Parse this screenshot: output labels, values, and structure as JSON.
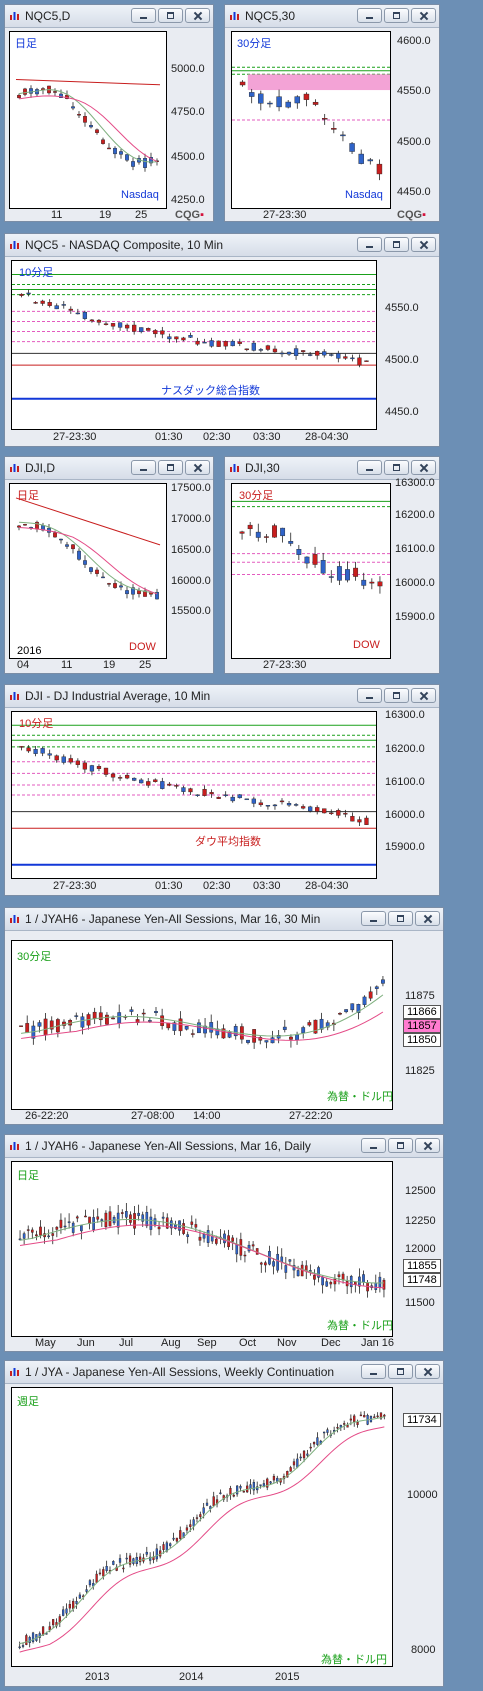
{
  "colors": {
    "up": "#2f63c8",
    "down": "#c81e1e",
    "ma_fast": "#7fb07f",
    "ma_slow": "#e44b87",
    "green_lvl": "#1aa01a",
    "pink_lvl": "#e35bbf",
    "red_lvl": "#c81e1e",
    "blue_lvl": "#1238d8",
    "black_lvl": "#333333"
  },
  "panels": [
    {
      "title": "NQC5,D",
      "period": "日足",
      "period_color": "#1238d8",
      "corner": "Nasdaq",
      "corner_color": "#1238d8",
      "yticks": [
        "5000.0",
        "4750.0",
        "4500.0",
        "4250.0"
      ],
      "xticks": [
        "11",
        "19",
        "25"
      ],
      "cqg": "CQG"
    },
    {
      "title": "NQC5,30",
      "period": "30分足",
      "period_color": "#1238d8",
      "corner": "Nasdaq",
      "corner_color": "#1238d8",
      "yticks": [
        "4600.0",
        "4550.0",
        "4500.0",
        "4450.0"
      ],
      "xticks": [
        "27-23:30"
      ],
      "cqg": "CQG"
    },
    {
      "title": "NQC5 - NASDAQ Composite, 10 Min",
      "period": "10分足",
      "period_color": "#1238d8",
      "center": "ナスダック総合指数",
      "center_color": "#1238d8",
      "yticks": [
        "4550.0",
        "4500.0",
        "4450.0"
      ],
      "xticks": [
        "27-23:30",
        "01:30",
        "02:30",
        "03:30",
        "28-04:30"
      ]
    },
    {
      "title": "DJI,D",
      "period": "日足",
      "period_color": "#c81e1e",
      "corner": "DOW",
      "corner_color": "#c81e1e",
      "year": "2016",
      "yticks": [
        "17500.0",
        "17000.0",
        "16500.0",
        "16000.0",
        "15500.0"
      ],
      "xticks": [
        "04",
        "11",
        "19",
        "25"
      ]
    },
    {
      "title": "DJI,30",
      "period": "30分足",
      "period_color": "#c81e1e",
      "corner": "DOW",
      "corner_color": "#c81e1e",
      "yticks": [
        "16300.0",
        "16200.0",
        "16100.0",
        "16000.0",
        "15900.0"
      ],
      "xticks": [
        "27-23:30"
      ]
    },
    {
      "title": "DJI - DJ Industrial Average, 10 Min",
      "period": "10分足",
      "period_color": "#c81e1e",
      "center": "ダウ平均指数",
      "center_color": "#c81e1e",
      "yticks": [
        "16300.0",
        "16200.0",
        "16100.0",
        "16000.0",
        "15900.0"
      ],
      "xticks": [
        "27-23:30",
        "01:30",
        "02:30",
        "03:30",
        "28-04:30"
      ]
    },
    {
      "title": "1 / JYAH6 - Japanese Yen-All Sessions, Mar 16, 30 Min",
      "period": "30分足",
      "period_color": "#1aa01a",
      "corner": "為替・ドル円",
      "corner_color": "#1aa01a",
      "yticks": [
        "11875",
        "11825"
      ],
      "tags": [
        "11866",
        "11857",
        "11850"
      ],
      "xticks": [
        "26-22:20",
        "27-08:00",
        "14:00",
        "27-22:20"
      ]
    },
    {
      "title": "1 / JYAH6 - Japanese Yen-All Sessions, Mar 16, Daily",
      "period": "日足",
      "period_color": "#1aa01a",
      "corner": "為替・ドル円",
      "corner_color": "#1aa01a",
      "yticks": [
        "12500",
        "12250",
        "12000",
        "11500"
      ],
      "tags": [
        "11855",
        "11748"
      ],
      "xticks": [
        "May",
        "Jun",
        "Jul",
        "Aug",
        "Sep",
        "Oct",
        "Nov",
        "Dec",
        "Jan 16"
      ]
    },
    {
      "title": "1 / JYA - Japanese Yen-All Sessions, Weekly Continuation",
      "period": "週足",
      "period_color": "#1aa01a",
      "corner": "為替・ドル円",
      "corner_color": "#1aa01a",
      "yticks": [
        "10000",
        "8000"
      ],
      "tags": [
        "11734"
      ],
      "xticks": [
        "2013",
        "2014",
        "2015"
      ]
    }
  ]
}
